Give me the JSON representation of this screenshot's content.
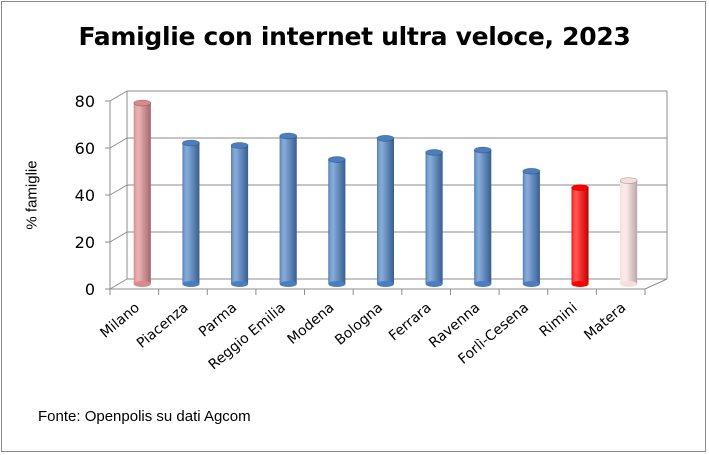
{
  "chart_data": {
    "type": "bar",
    "title": "Famiglie con internet ultra veloce, 2023",
    "xlabel": "",
    "ylabel": "% famiglie",
    "ylim": [
      0,
      80
    ],
    "yticks": [
      0,
      20,
      40,
      60,
      80
    ],
    "grid": true,
    "categories": [
      "Milano",
      "Piacenza",
      "Parma",
      "Reggio Emilia",
      "Modena",
      "Bologna",
      "Ferrara",
      "Ravenna",
      "Forlì-Cesena",
      "Rimini",
      "Matera"
    ],
    "values": [
      77,
      60,
      59,
      63,
      53,
      62,
      56,
      57,
      48,
      41,
      44
    ],
    "colors": [
      "#d9898c",
      "#4a7ebf",
      "#4a7ebf",
      "#4a7ebf",
      "#4a7ebf",
      "#4a7ebf",
      "#4a7ebf",
      "#4a7ebf",
      "#4a7ebf",
      "#ff0000",
      "#f6dede"
    ]
  },
  "source": "Fonte: Openpolis su dati Agcom"
}
